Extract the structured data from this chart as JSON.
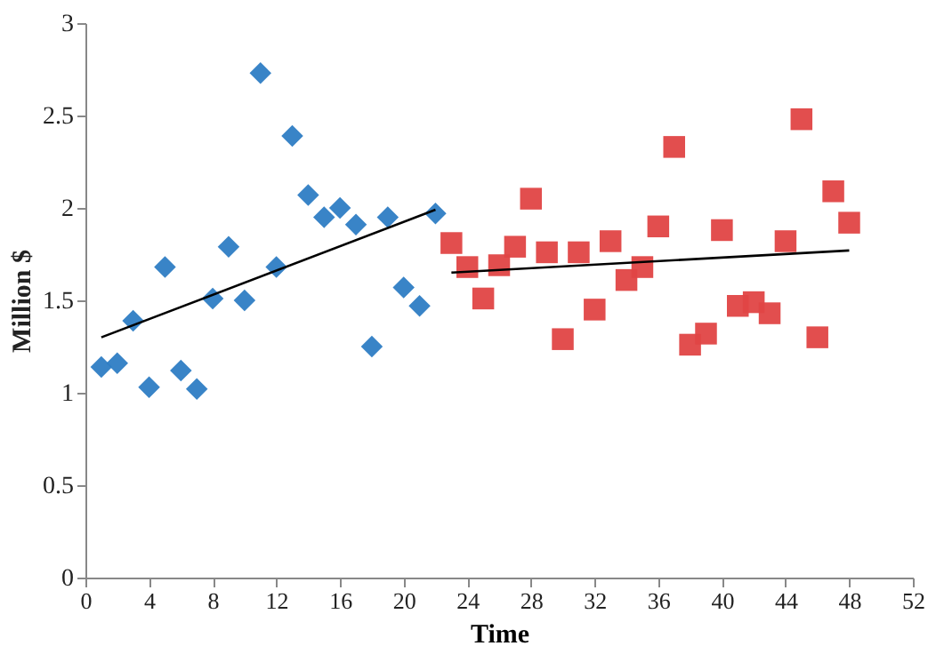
{
  "chart_data": {
    "type": "scatter",
    "xlabel": "Time",
    "ylabel": "Million $",
    "xlim": [
      0,
      52
    ],
    "xticks": [
      0,
      4,
      8,
      12,
      16,
      20,
      24,
      28,
      32,
      36,
      40,
      44,
      48,
      52
    ],
    "ylim": [
      0,
      3
    ],
    "yticks": [
      0,
      0.5,
      1,
      1.5,
      2,
      2.5,
      3
    ],
    "grid": false,
    "series": [
      {
        "marker": "diamond",
        "color": "#2e7dc4",
        "x": [
          1,
          2,
          3,
          4,
          5,
          6,
          7,
          8,
          9,
          10,
          11,
          12,
          13,
          14,
          15,
          16,
          17,
          18,
          19,
          20,
          21,
          22
        ],
        "values": [
          1.14,
          1.16,
          1.39,
          1.03,
          1.68,
          1.12,
          1.02,
          1.51,
          1.79,
          1.5,
          2.73,
          1.68,
          2.39,
          2.07,
          1.95,
          2.0,
          1.91,
          1.25,
          1.95,
          1.57,
          1.47,
          1.97
        ]
      },
      {
        "marker": "square",
        "color": "#e04444",
        "x": [
          23,
          24,
          25,
          26,
          27,
          28,
          29,
          30,
          31,
          32,
          33,
          34,
          35,
          36,
          37,
          38,
          39,
          40,
          41,
          42,
          43,
          44,
          45,
          46,
          47,
          48
        ],
        "values": [
          1.81,
          1.68,
          1.51,
          1.69,
          1.79,
          2.05,
          1.76,
          1.29,
          1.76,
          1.45,
          1.82,
          1.61,
          1.68,
          1.9,
          2.33,
          1.26,
          1.32,
          1.88,
          1.47,
          1.49,
          1.43,
          1.82,
          2.48,
          1.3,
          2.09,
          1.92
        ]
      },
      {
        "type": "line",
        "color": "#000000",
        "x": [
          1,
          22
        ],
        "values": [
          1.3,
          1.99
        ]
      },
      {
        "type": "line",
        "color": "#000000",
        "x": [
          23,
          48
        ],
        "values": [
          1.65,
          1.77
        ]
      }
    ]
  }
}
